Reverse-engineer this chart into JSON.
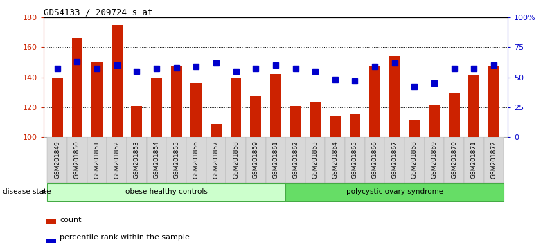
{
  "title": "GDS4133 / 209724_s_at",
  "samples": [
    "GSM201849",
    "GSM201850",
    "GSM201851",
    "GSM201852",
    "GSM201853",
    "GSM201854",
    "GSM201855",
    "GSM201856",
    "GSM201857",
    "GSM201858",
    "GSM201859",
    "GSM201861",
    "GSM201862",
    "GSM201863",
    "GSM201864",
    "GSM201865",
    "GSM201866",
    "GSM201867",
    "GSM201868",
    "GSM201869",
    "GSM201870",
    "GSM201871",
    "GSM201872"
  ],
  "counts": [
    140,
    166,
    150,
    175,
    121,
    140,
    147,
    136,
    109,
    140,
    128,
    142,
    121,
    123,
    114,
    116,
    147,
    154,
    111,
    122,
    129,
    141,
    147
  ],
  "percentiles": [
    57,
    63,
    57,
    60,
    55,
    57,
    58,
    59,
    62,
    55,
    57,
    60,
    57,
    55,
    48,
    47,
    59,
    62,
    42,
    45,
    57,
    57,
    60
  ],
  "groups": [
    {
      "label": "obese healthy controls",
      "start": 0,
      "end": 12,
      "light_color": "#ccffcc"
    },
    {
      "label": "polycystic ovary syndrome",
      "start": 12,
      "end": 23,
      "light_color": "#66dd66"
    }
  ],
  "ylim_left": [
    100,
    180
  ],
  "ylim_right": [
    0,
    100
  ],
  "yticks_left": [
    100,
    120,
    140,
    160,
    180
  ],
  "yticks_right": [
    0,
    25,
    50,
    75,
    100
  ],
  "ytick_labels_right": [
    "0",
    "25",
    "50",
    "75",
    "100%"
  ],
  "bar_color": "#cc2200",
  "percentile_color": "#0000cc",
  "bg_color": "#ffffff",
  "axis_left_color": "#cc2200",
  "axis_right_color": "#0000cc",
  "bar_width": 0.55,
  "percentile_marker_size": 6
}
